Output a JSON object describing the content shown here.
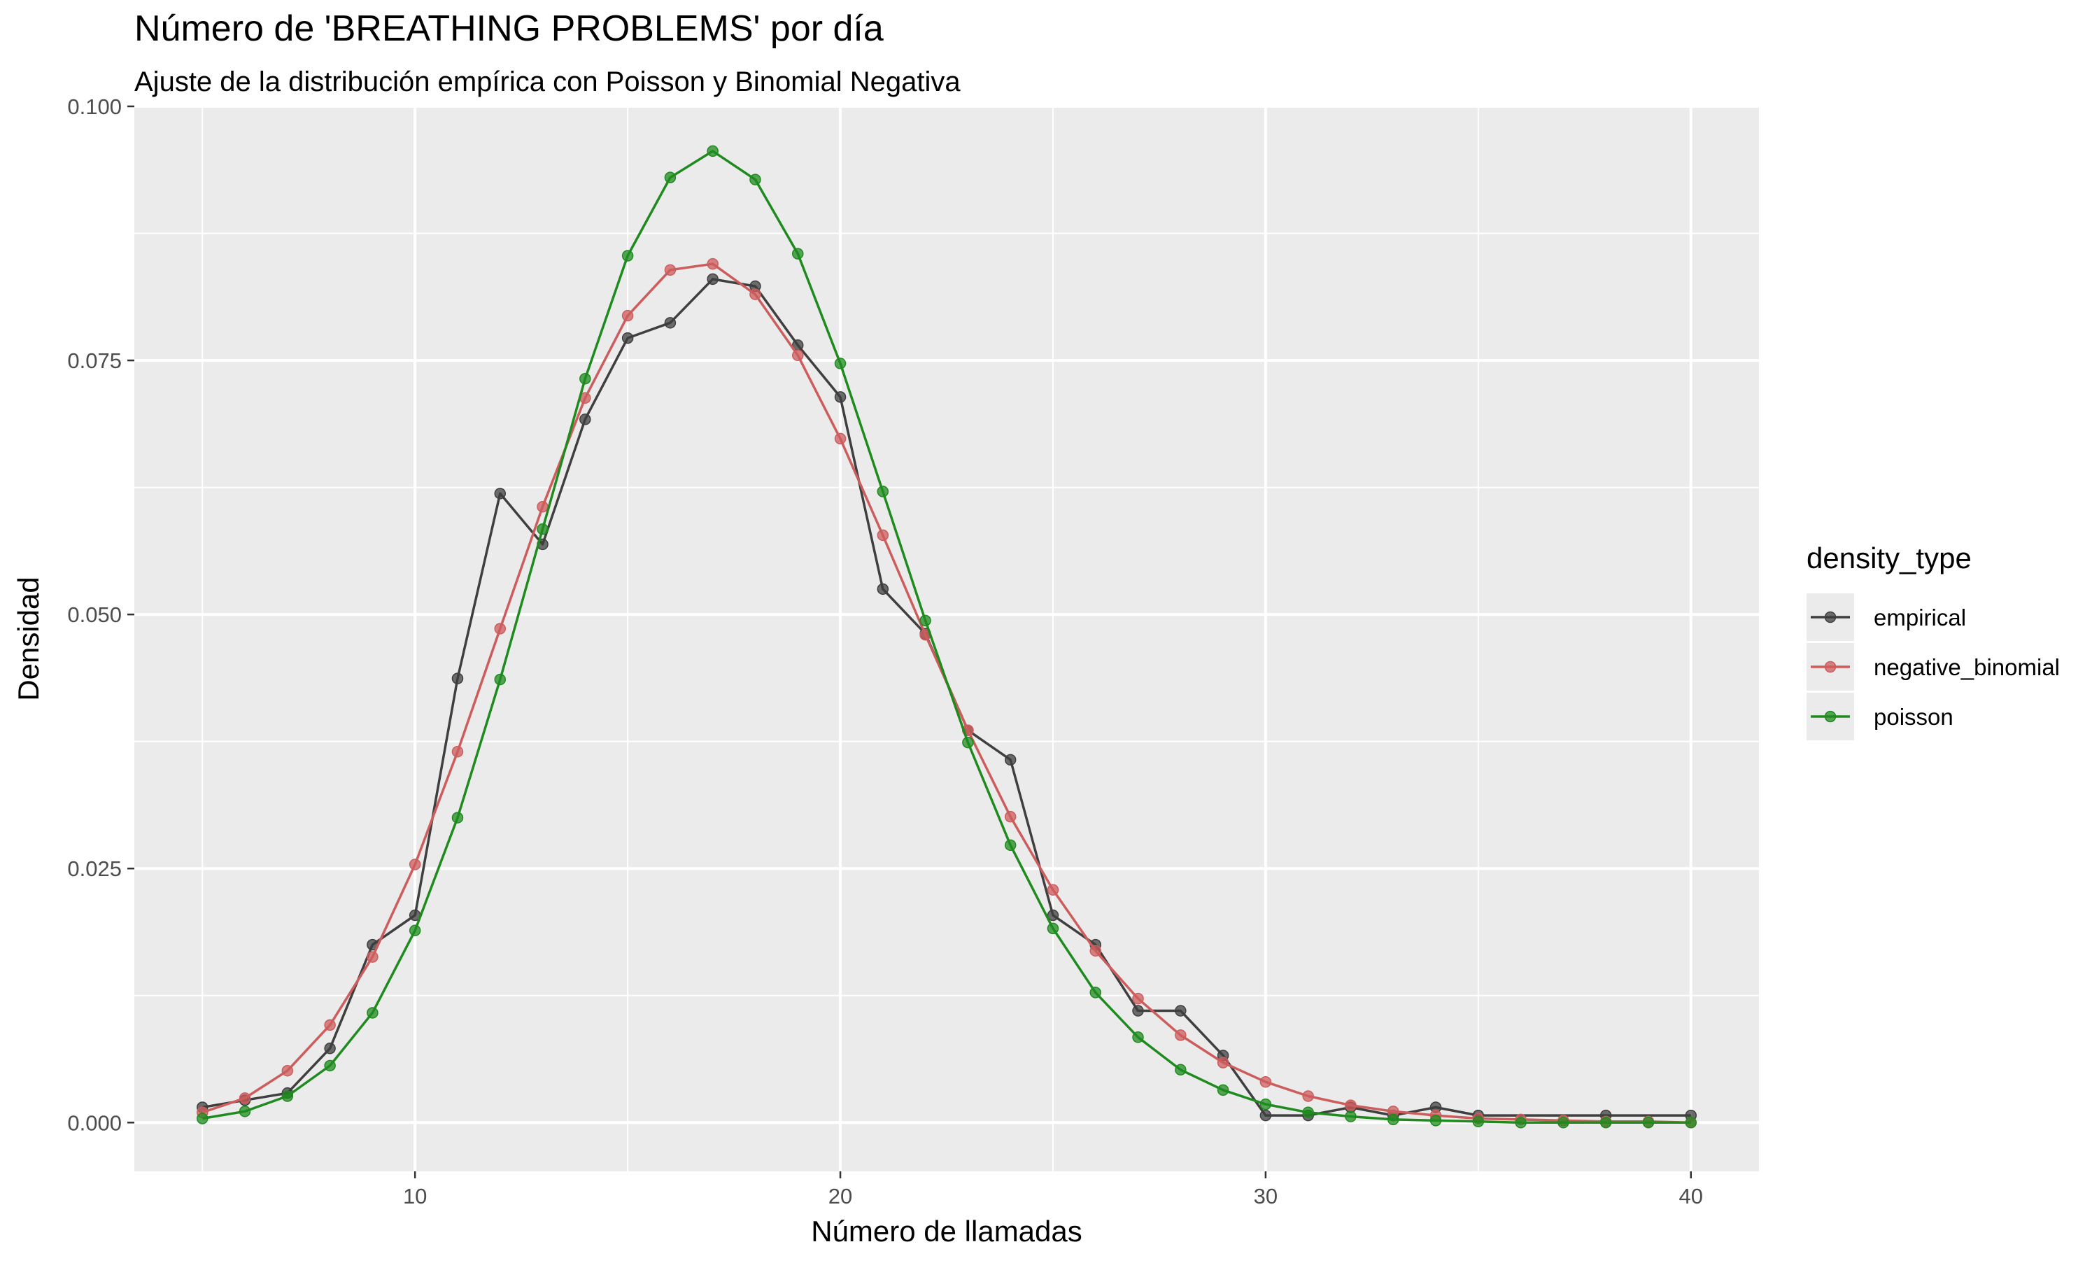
{
  "chart_data": {
    "type": "line",
    "title": "Número de 'BREATHING PROBLEMS' por día",
    "subtitle": "Ajuste de la distribución empírica con Poisson y Binomial Negativa",
    "xlabel": "Número de llamadas",
    "ylabel": "Densidad",
    "xlim": [
      3.4,
      41.6
    ],
    "ylim": [
      -0.0048,
      0.1
    ],
    "xticks": [
      10,
      20,
      30,
      40
    ],
    "yticks": [
      0.0,
      0.025,
      0.05,
      0.075,
      0.1
    ],
    "ytick_labels": [
      "0.000",
      "0.025",
      "0.050",
      "0.075",
      "0.100"
    ],
    "grid": true,
    "legend_position": "right",
    "legend_title": "density_type",
    "series": [
      {
        "name": "empirical",
        "color": "#3f3f3f",
        "x": [
          5,
          6,
          7,
          8,
          9,
          10,
          11,
          12,
          13,
          14,
          15,
          16,
          17,
          18,
          19,
          20,
          21,
          22,
          23,
          24,
          25,
          26,
          27,
          28,
          29,
          30,
          31,
          32,
          33,
          34,
          35,
          38,
          40
        ],
        "y": [
          0.0015,
          0.0022,
          0.0029,
          0.0073,
          0.0175,
          0.0204,
          0.0437,
          0.0619,
          0.0569,
          0.0692,
          0.0772,
          0.0787,
          0.083,
          0.0823,
          0.0765,
          0.0714,
          0.0525,
          0.0481,
          0.0386,
          0.0357,
          0.0204,
          0.0175,
          0.011,
          0.011,
          0.0066,
          0.0007,
          0.0007,
          0.0015,
          0.0007,
          0.0015,
          0.0007,
          0.0007,
          0.0007
        ]
      },
      {
        "name": "negative_binomial",
        "color": "#cd5c5c",
        "x": [
          5,
          6,
          7,
          8,
          9,
          10,
          11,
          12,
          13,
          14,
          15,
          16,
          17,
          18,
          19,
          20,
          21,
          22,
          23,
          24,
          25,
          26,
          27,
          28,
          29,
          30,
          31,
          32,
          33,
          34,
          35,
          36,
          37,
          38,
          39,
          40
        ],
        "y": [
          0.001,
          0.0024,
          0.0051,
          0.0096,
          0.0163,
          0.0254,
          0.0365,
          0.0486,
          0.0606,
          0.0713,
          0.0794,
          0.0839,
          0.0845,
          0.0815,
          0.0755,
          0.0673,
          0.0578,
          0.048,
          0.0386,
          0.0301,
          0.0229,
          0.0169,
          0.0122,
          0.0086,
          0.0059,
          0.004,
          0.0026,
          0.0017,
          0.0011,
          0.0007,
          0.0004,
          0.0003,
          0.0002,
          0.0001,
          0.0001,
          0.0
        ]
      },
      {
        "name": "poisson",
        "color": "#1f8b1f",
        "x": [
          5,
          6,
          7,
          8,
          9,
          10,
          11,
          12,
          13,
          14,
          15,
          16,
          17,
          18,
          19,
          20,
          21,
          22,
          23,
          24,
          25,
          26,
          27,
          28,
          29,
          30,
          31,
          32,
          33,
          34,
          35,
          36,
          37,
          38,
          39,
          40
        ],
        "y": [
          0.0004,
          0.0011,
          0.0026,
          0.0056,
          0.0108,
          0.0189,
          0.03,
          0.0436,
          0.0584,
          0.0732,
          0.0853,
          0.093,
          0.0956,
          0.0928,
          0.0855,
          0.0747,
          0.0621,
          0.0494,
          0.0374,
          0.0273,
          0.0191,
          0.0128,
          0.0084,
          0.0052,
          0.0032,
          0.0018,
          0.001,
          0.0006,
          0.0003,
          0.0002,
          0.0001,
          0.0,
          0.0,
          0.0,
          0.0,
          0.0
        ]
      }
    ]
  }
}
